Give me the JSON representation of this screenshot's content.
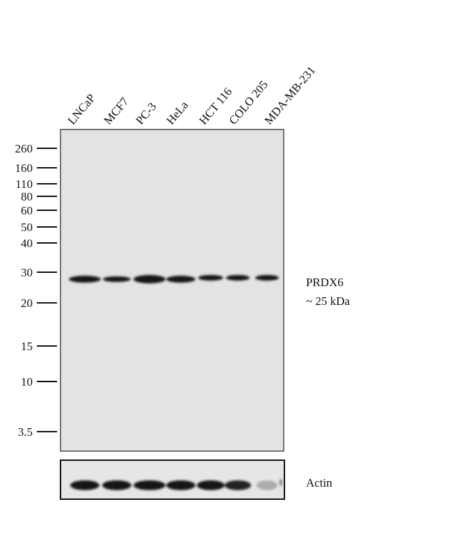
{
  "lanes": [
    "LNCaP",
    "MCF7",
    "PC-3",
    "HeLa",
    "HCT 116",
    "COLO 205",
    "MDA-MB-231"
  ],
  "markers": [
    "260",
    "160",
    "110",
    "80",
    "60",
    "50",
    "40",
    "30",
    "20",
    "15",
    "10",
    "3.5"
  ],
  "target": {
    "name": "PRDX6",
    "size": "~ 25 kDa"
  },
  "loading_control": "Actin"
}
